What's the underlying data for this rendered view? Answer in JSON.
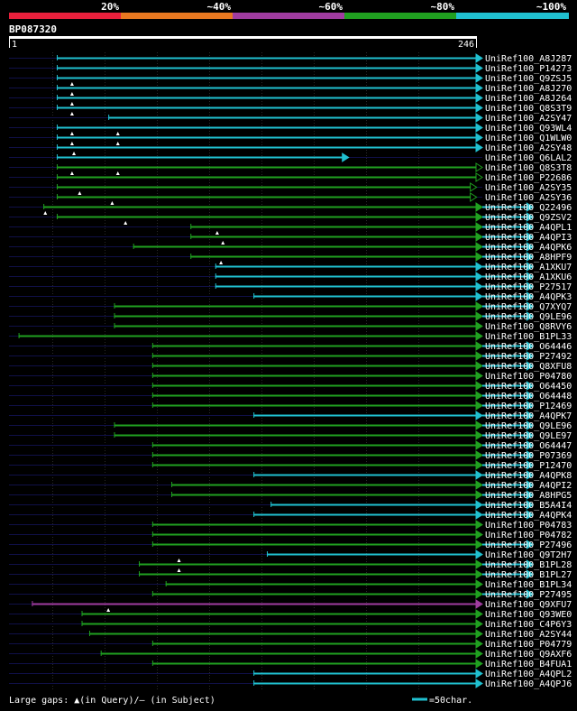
{
  "legend": {
    "labels": [
      "20%",
      "~40%",
      "~60%",
      "~80%",
      "~100%"
    ],
    "colors": [
      "#e8203c",
      "#e87820",
      "#a03ca0",
      "#20a020",
      "#20c0d0"
    ]
  },
  "query": {
    "id": "BP087320",
    "start": "1",
    "end": "246",
    "length": 246
  },
  "footer": {
    "gaps_text": "Large gaps: ▲(in Query)/— (in Subject)",
    "scale_text": "=50char."
  },
  "colors": {
    "background": "#000000",
    "text": "#ffffff",
    "grid": "#2a2a2a",
    "row_guide": "#101048",
    "cyan": "#20c0d0",
    "green": "#20a020",
    "purple": "#a03ca0"
  },
  "hits": [
    {
      "id": "UniRef100_A8J287",
      "start": 26,
      "end": 246,
      "ext": 0,
      "color": "cyan",
      "open": false,
      "gaps": []
    },
    {
      "id": "UniRef100_P14273",
      "start": 26,
      "end": 246,
      "ext": 0,
      "color": "cyan",
      "open": false,
      "gaps": []
    },
    {
      "id": "UniRef100_Q9ZSJ5",
      "start": 26,
      "end": 246,
      "ext": 0,
      "color": "cyan",
      "open": false,
      "gaps": []
    },
    {
      "id": "UniRef100_A8J270",
      "start": 26,
      "end": 246,
      "ext": 0,
      "color": "cyan",
      "open": false,
      "gaps": [
        34
      ]
    },
    {
      "id": "UniRef100_A8J264",
      "start": 26,
      "end": 246,
      "ext": 0,
      "color": "cyan",
      "open": false,
      "gaps": [
        34
      ]
    },
    {
      "id": "UniRef100_Q8S3T9",
      "start": 26,
      "end": 246,
      "ext": 0,
      "color": "cyan",
      "open": false,
      "gaps": [
        34
      ]
    },
    {
      "id": "UniRef100_A2SY47",
      "start": 53,
      "end": 246,
      "ext": 0,
      "color": "cyan",
      "open": false,
      "gaps": [
        34
      ]
    },
    {
      "id": "UniRef100_Q93WL4",
      "start": 26,
      "end": 246,
      "ext": 0,
      "color": "cyan",
      "open": false,
      "gaps": []
    },
    {
      "id": "UniRef100_Q1WLW0",
      "start": 26,
      "end": 246,
      "ext": 0,
      "color": "cyan",
      "open": false,
      "gaps": [
        34,
        58
      ]
    },
    {
      "id": "UniRef100_A2SY48",
      "start": 26,
      "end": 246,
      "ext": 0,
      "color": "cyan",
      "open": false,
      "gaps": [
        34,
        58
      ]
    },
    {
      "id": "UniRef100_Q6LAL2",
      "start": 26,
      "end": 176,
      "ext": 0,
      "color": "cyan",
      "open": false,
      "gaps": [
        35
      ]
    },
    {
      "id": "UniRef100_Q8S3T8",
      "start": 26,
      "end": 246,
      "ext": 0,
      "color": "green",
      "open": true,
      "gaps": []
    },
    {
      "id": "UniRef100_P22686",
      "start": 26,
      "end": 246,
      "ext": 0,
      "color": "green",
      "open": true,
      "gaps": [
        34,
        58
      ]
    },
    {
      "id": "UniRef100_A2SY35",
      "start": 26,
      "end": 243,
      "ext": 0,
      "color": "green",
      "open": true,
      "gaps": []
    },
    {
      "id": "UniRef100_A2SY36",
      "start": 26,
      "end": 243,
      "ext": 0,
      "color": "green",
      "open": true,
      "gaps": [
        38
      ]
    },
    {
      "id": "UniRef100_Q22496",
      "start": 19,
      "end": 246,
      "ext": 25,
      "color": "green",
      "open": false,
      "gaps": [
        55
      ]
    },
    {
      "id": "UniRef100_Q9ZSV2",
      "start": 26,
      "end": 246,
      "ext": 25,
      "color": "green",
      "open": false,
      "gaps": [
        20
      ]
    },
    {
      "id": "UniRef100_A4QPL1",
      "start": 96,
      "end": 246,
      "ext": 25,
      "color": "green",
      "open": false,
      "gaps": [
        62
      ]
    },
    {
      "id": "UniRef100_A4QPI3",
      "start": 96,
      "end": 246,
      "ext": 25,
      "color": "green",
      "open": false,
      "gaps": [
        110
      ]
    },
    {
      "id": "UniRef100_A4QPK6",
      "start": 66,
      "end": 246,
      "ext": 25,
      "color": "green",
      "open": false,
      "gaps": [
        113
      ]
    },
    {
      "id": "UniRef100_A8HPF9",
      "start": 96,
      "end": 246,
      "ext": 25,
      "color": "green",
      "open": false,
      "gaps": []
    },
    {
      "id": "UniRef100_A1XKU7",
      "start": 109,
      "end": 246,
      "ext": 25,
      "color": "cyan",
      "open": false,
      "gaps": [
        112
      ]
    },
    {
      "id": "UniRef100_A1XKU6",
      "start": 109,
      "end": 246,
      "ext": 25,
      "color": "cyan",
      "open": false,
      "gaps": []
    },
    {
      "id": "UniRef100_P27517",
      "start": 109,
      "end": 246,
      "ext": 25,
      "color": "cyan",
      "open": false,
      "gaps": []
    },
    {
      "id": "UniRef100_A4QPK3",
      "start": 129,
      "end": 246,
      "ext": 25,
      "color": "cyan",
      "open": false,
      "gaps": []
    },
    {
      "id": "UniRef100_Q7XYQ7",
      "start": 56,
      "end": 246,
      "ext": 25,
      "color": "green",
      "open": false,
      "gaps": []
    },
    {
      "id": "UniRef100_Q9LE96",
      "start": 56,
      "end": 246,
      "ext": 25,
      "color": "green",
      "open": false,
      "gaps": []
    },
    {
      "id": "UniRef100_Q8RVY6",
      "start": 56,
      "end": 246,
      "ext": 0,
      "color": "green",
      "open": false,
      "gaps": []
    },
    {
      "id": "UniRef100_B1PL33",
      "start": 6,
      "end": 246,
      "ext": 0,
      "color": "green",
      "open": false,
      "gaps": []
    },
    {
      "id": "UniRef100_O64446",
      "start": 76,
      "end": 246,
      "ext": 25,
      "color": "green",
      "open": false,
      "gaps": []
    },
    {
      "id": "UniRef100_P27492",
      "start": 76,
      "end": 246,
      "ext": 25,
      "color": "green",
      "open": false,
      "gaps": []
    },
    {
      "id": "UniRef100_Q8XFU8",
      "start": 76,
      "end": 246,
      "ext": 25,
      "color": "green",
      "open": false,
      "gaps": []
    },
    {
      "id": "UniRef100_P04780",
      "start": 76,
      "end": 246,
      "ext": 0,
      "color": "green",
      "open": false,
      "gaps": []
    },
    {
      "id": "UniRef100_O64450",
      "start": 76,
      "end": 246,
      "ext": 25,
      "color": "green",
      "open": false,
      "gaps": []
    },
    {
      "id": "UniRef100_O64448",
      "start": 76,
      "end": 246,
      "ext": 25,
      "color": "green",
      "open": false,
      "gaps": []
    },
    {
      "id": "UniRef100_P12469",
      "start": 76,
      "end": 246,
      "ext": 25,
      "color": "green",
      "open": false,
      "gaps": []
    },
    {
      "id": "UniRef100_A4QPK7",
      "start": 129,
      "end": 246,
      "ext": 25,
      "color": "cyan",
      "open": false,
      "gaps": []
    },
    {
      "id": "UniRef100_Q9LE96",
      "start": 56,
      "end": 246,
      "ext": 25,
      "color": "green",
      "open": false,
      "gaps": []
    },
    {
      "id": "UniRef100_Q9LE97",
      "start": 56,
      "end": 246,
      "ext": 25,
      "color": "green",
      "open": false,
      "gaps": []
    },
    {
      "id": "UniRef100_O64447",
      "start": 76,
      "end": 246,
      "ext": 25,
      "color": "green",
      "open": false,
      "gaps": []
    },
    {
      "id": "UniRef100_P07369",
      "start": 76,
      "end": 246,
      "ext": 25,
      "color": "green",
      "open": false,
      "gaps": []
    },
    {
      "id": "UniRef100_P12470",
      "start": 76,
      "end": 246,
      "ext": 25,
      "color": "green",
      "open": false,
      "gaps": []
    },
    {
      "id": "UniRef100_A4QPK8",
      "start": 129,
      "end": 246,
      "ext": 25,
      "color": "cyan",
      "open": false,
      "gaps": []
    },
    {
      "id": "UniRef100_A4QPI2",
      "start": 86,
      "end": 246,
      "ext": 25,
      "color": "green",
      "open": false,
      "gaps": []
    },
    {
      "id": "UniRef100_A8HPG5",
      "start": 86,
      "end": 246,
      "ext": 25,
      "color": "green",
      "open": false,
      "gaps": []
    },
    {
      "id": "UniRef100_B5A4I4",
      "start": 138,
      "end": 246,
      "ext": 25,
      "color": "cyan",
      "open": false,
      "gaps": []
    },
    {
      "id": "UniRef100_A4QPK4",
      "start": 129,
      "end": 246,
      "ext": 25,
      "color": "cyan",
      "open": false,
      "gaps": []
    },
    {
      "id": "UniRef100_P04783",
      "start": 76,
      "end": 246,
      "ext": 0,
      "color": "green",
      "open": false,
      "gaps": []
    },
    {
      "id": "UniRef100_P04782",
      "start": 76,
      "end": 246,
      "ext": 0,
      "color": "green",
      "open": false,
      "gaps": []
    },
    {
      "id": "UniRef100_P27496",
      "start": 76,
      "end": 246,
      "ext": 25,
      "color": "green",
      "open": false,
      "gaps": []
    },
    {
      "id": "UniRef100_Q9T2H7",
      "start": 136,
      "end": 246,
      "ext": 0,
      "color": "cyan",
      "open": false,
      "gaps": []
    },
    {
      "id": "UniRef100_B1PL28",
      "start": 69,
      "end": 246,
      "ext": 25,
      "color": "green",
      "open": false,
      "gaps": [
        90
      ]
    },
    {
      "id": "UniRef100_B1PL27",
      "start": 69,
      "end": 246,
      "ext": 25,
      "color": "green",
      "open": false,
      "gaps": [
        90
      ]
    },
    {
      "id": "UniRef100_B1PL34",
      "start": 83,
      "end": 246,
      "ext": 0,
      "color": "green",
      "open": false,
      "gaps": []
    },
    {
      "id": "UniRef100_P27495",
      "start": 76,
      "end": 246,
      "ext": 25,
      "color": "green",
      "open": false,
      "gaps": []
    },
    {
      "id": "UniRef100_Q9XFU7",
      "start": 13,
      "end": 246,
      "ext": 0,
      "color": "purple",
      "open": false,
      "gaps": []
    },
    {
      "id": "UniRef100_Q93WE0",
      "start": 39,
      "end": 246,
      "ext": 0,
      "color": "green",
      "open": false,
      "gaps": [
        53
      ]
    },
    {
      "id": "UniRef100_C4P6Y3",
      "start": 39,
      "end": 246,
      "ext": 0,
      "color": "green",
      "open": false,
      "gaps": []
    },
    {
      "id": "UniRef100_A2SY44",
      "start": 43,
      "end": 246,
      "ext": 0,
      "color": "green",
      "open": false,
      "gaps": []
    },
    {
      "id": "UniRef100_P04779",
      "start": 76,
      "end": 246,
      "ext": 0,
      "color": "green",
      "open": false,
      "gaps": []
    },
    {
      "id": "UniRef100_Q9AXF6",
      "start": 49,
      "end": 246,
      "ext": 0,
      "color": "green",
      "open": false,
      "gaps": []
    },
    {
      "id": "UniRef100_B4FUA1",
      "start": 76,
      "end": 246,
      "ext": 0,
      "color": "green",
      "open": false,
      "gaps": []
    },
    {
      "id": "UniRef100_A4QPL2",
      "start": 129,
      "end": 246,
      "ext": 0,
      "color": "cyan",
      "open": false,
      "gaps": []
    },
    {
      "id": "UniRef100_A4QPJ6",
      "start": 129,
      "end": 246,
      "ext": 0,
      "color": "cyan",
      "open": false,
      "gaps": []
    }
  ]
}
